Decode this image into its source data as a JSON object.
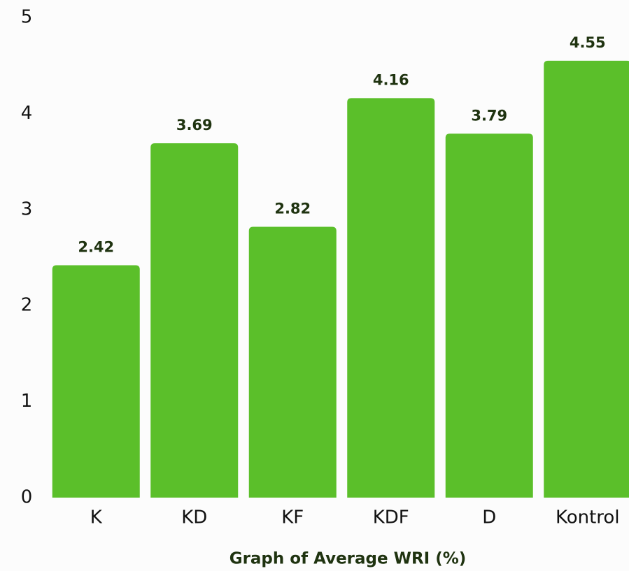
{
  "chart_data": {
    "type": "bar",
    "title": "Graph of Average WRI (%)",
    "categories": [
      "K",
      "KD",
      "KF",
      "KDF",
      "D",
      "Kontrol"
    ],
    "values": [
      2.42,
      3.69,
      2.82,
      4.16,
      3.79,
      4.55
    ],
    "color": "#5bbf2a",
    "ylim": [
      0,
      5
    ],
    "yticks": [
      0,
      1,
      2,
      3,
      4,
      5
    ],
    "grid": false
  }
}
